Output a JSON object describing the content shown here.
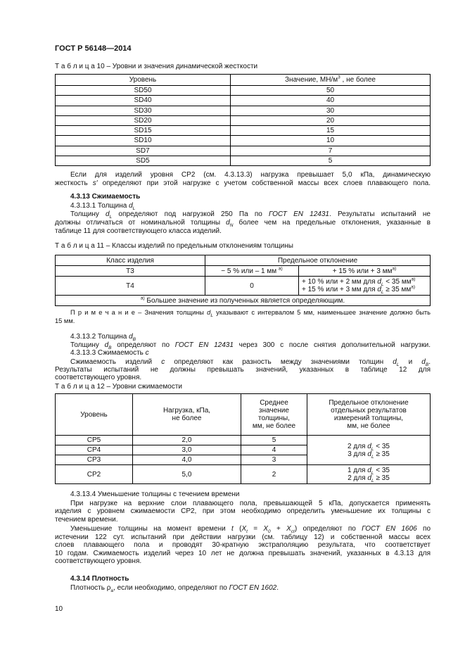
{
  "header": {
    "doc_id": "ГОСТ Р 56148—2014"
  },
  "table10": {
    "caption": "Т а б л и ц а 10 – Уровни и значения динамической жесткости",
    "headers": [
      "Уровень",
      [
        "Значение, МН/м",
        {
          "sup": "3"
        },
        " , не более"
      ]
    ],
    "rows": [
      [
        "SD50",
        "50"
      ],
      [
        "SD40",
        "40"
      ],
      [
        "SD30",
        "30"
      ],
      [
        "SD20",
        "20"
      ],
      [
        "SD15",
        "15"
      ],
      [
        "SD10",
        "10"
      ],
      [
        "SD7",
        "7"
      ],
      [
        "SD5",
        "5"
      ]
    ]
  },
  "p1": [
    [
      "Если для изделий уровня СР2 (см. 4.3.13.3) нагрузка превышает  5,0 кПа, динамическую"
    ],
    [
      "жесткость ",
      {
        "t": "s′",
        "i": true
      },
      " определяют при этой нагрузке с учетом собственной массы всех слоев плавающего пола."
    ]
  ],
  "h4313": [
    [
      "4.3.13 Сжимаемость"
    ]
  ],
  "h43131": [
    [
      "4.3.13.1 Толщина ",
      {
        "t": "d",
        "i": true,
        "sub": "L"
      }
    ]
  ],
  "p2": [
    [
      "Толщину ",
      {
        "t": "d",
        "i": true,
        "sub": "L"
      },
      " определяют под нагрузкой  250 Па по ",
      {
        "t": "ГОСТ EN 12431",
        "i": true
      },
      ". Результаты испытаний не"
    ],
    [
      "должны отличаться от номинальной толщины ",
      {
        "t": "d",
        "i": true,
        "sub": "N"
      },
      " более чем на предельные отклонения, указанные в"
    ],
    [
      "таблице 11 для соответствующего класса изделий."
    ]
  ],
  "table11": {
    "caption": "Т а б л и ц а 11 – Классы изделий по предельным отклонениям толщины",
    "headers": [
      "Класс изделия",
      "Предельное отклонение"
    ],
    "rows": [
      [
        "Т3",
        [
          "− 5 % или – 1 мм ",
          {
            "sup": "а)"
          }
        ],
        [
          "+ 15 % или + 3 мм",
          {
            "sup": "а)"
          }
        ]
      ],
      [
        "Т4",
        "0",
        null
      ]
    ],
    "t4_upper": [
      [
        "+ 10 % или + 2 мм для ",
        {
          "t": "d",
          "i": true,
          "sub": "L"
        },
        " < 35 мм",
        {
          "sup": "а)"
        }
      ],
      [
        "+ 15 % или + 3 мм для ",
        {
          "t": "d",
          "i": true,
          "sub": "L"
        },
        " ≥ 35 мм",
        {
          "sup": "а)"
        }
      ]
    ],
    "footnote": [
      {
        "sup": "а)"
      },
      " Большее значение из полученных является определяющим."
    ]
  },
  "note": [
    [
      "П р и м е ч а н и е – Значения толщины ",
      {
        "t": "d",
        "i": true,
        "sub": "L"
      },
      " указывают с интервалом 5 мм, наименьшее значение должно быть"
    ],
    [
      "15 мм."
    ]
  ],
  "h43132": [
    [
      "4.3.13.2 Толщина ",
      {
        "t": "d",
        "i": true,
        "sub": "B"
      }
    ]
  ],
  "p3": [
    [
      "Толщину ",
      {
        "t": "d",
        "i": true,
        "sub": "B"
      },
      " определяют по ",
      {
        "t": "ГОСТ EN 12431",
        "i": true
      },
      " через 300 с после снятия дополнительной нагрузки."
    ]
  ],
  "h43133": [
    [
      "4.3.13.3 Сжимаемость ",
      {
        "t": "с",
        "i": true
      }
    ]
  ],
  "p4": [
    [
      "Сжимаемость изделий ",
      {
        "t": "с",
        "i": true
      },
      " определяют как разность между значениями толщин ",
      {
        "t": "d",
        "i": true,
        "sub": "L"
      },
      " и ",
      {
        "t": "d",
        "i": true,
        "sub": "B"
      },
      "."
    ],
    [
      "Результаты испытаний не должны превышать значений, указанных в   таблице 12 для"
    ],
    [
      "соответствующего уровня."
    ]
  ],
  "table12": {
    "caption": "Т а б л и ц а 12 – Уровни сжимаемости",
    "headers": [
      [
        "Уровень"
      ],
      [
        "Нагрузка, кПа,",
        "не более"
      ],
      [
        "Среднее",
        "значение",
        "толщины,",
        "мм, не более"
      ],
      [
        "Предельное отклонение",
        "отдельных результатов",
        "измерений толщины,",
        "мм, не более"
      ]
    ],
    "rows": [
      [
        "СР5",
        "2,0",
        "5"
      ],
      [
        "СР4",
        "3,0",
        "4"
      ],
      [
        "СР3",
        "4,0",
        "3"
      ],
      [
        "СР2",
        "5,0",
        "2"
      ]
    ],
    "dev_group1": [
      [
        "2 для ",
        {
          "t": "d",
          "i": true,
          "sub": "L"
        },
        " < 35"
      ],
      [
        "3 для ",
        {
          "t": "d",
          "i": true,
          "sub": "L"
        },
        " ≥ 35"
      ]
    ],
    "dev_group2": [
      [
        "1 для ",
        {
          "t": "d",
          "i": true,
          "sub": "L"
        },
        " < 35"
      ],
      [
        "2 для  ",
        {
          "t": "d",
          "i": true,
          "sub": "L"
        },
        " ≥ 35"
      ]
    ]
  },
  "h43134": [
    [
      "4.3.13.4 Уменьшение толщины с течением времени"
    ]
  ],
  "p5": [
    [
      "При нагрузке на верхние слои плавающего пола, превышающей 5 кПа, допускается применять"
    ],
    [
      "изделия с уровнем сжимаемости СР2, при этом необходимо определить уменьшение их толщины с"
    ],
    [
      "течением времени."
    ]
  ],
  "p6": [
    [
      "Уменьшение толщины на момент времени ",
      {
        "t": "t",
        "i": true
      },
      " (",
      {
        "t": "X",
        "i": true,
        "sub": "t"
      },
      " = ",
      {
        "t": "X",
        "i": true,
        "sub": "0"
      },
      " + ",
      {
        "t": "X",
        "i": true,
        "sub": "ct"
      },
      ") определяют по ",
      {
        "t": "ГОСТ EN 1606",
        "i": true
      },
      " по"
    ],
    [
      "истечении 122 сут. испытаний при действии нагрузки (см. таблицу 12) и собственной массы всех"
    ],
    [
      "слоев плавающего пола и проводят 30-кратную экстраполяцию результата, что соответствует"
    ],
    [
      "10 годам. Сжимаемость изделий через 10 лет не должна превышать значений, указанных в 4.3.13 для"
    ],
    [
      "соответствующего уровня."
    ]
  ],
  "h4314": [
    [
      "4.3.14 Плотность"
    ]
  ],
  "p7": [
    [
      "Плотность ρ",
      {
        "sub": "a"
      },
      ", если необходимо, определяют по ",
      {
        "t": "ГОСТ EN 1602",
        "i": true
      },
      "."
    ]
  ],
  "page_number": "10"
}
